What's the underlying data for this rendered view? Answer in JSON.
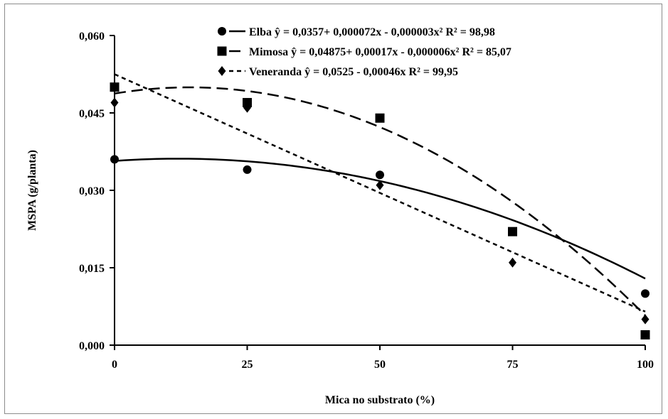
{
  "chart_data": {
    "type": "scatter",
    "xlabel": "Mica no substrato (%)",
    "ylabel": "MSPA  (g/planta)",
    "x_ticks": [
      0,
      25,
      50,
      75,
      100
    ],
    "x_tick_labels": [
      "0",
      "25",
      "50",
      "75",
      "100"
    ],
    "y_ticks": [
      0,
      0.015,
      0.03,
      0.045,
      0.06
    ],
    "y_tick_labels": [
      "0,000",
      "0,015",
      "0,030",
      "0,045",
      "0,060"
    ],
    "xlim": [
      0,
      100
    ],
    "ylim": [
      0,
      0.06
    ],
    "grid": false,
    "legend_position": "top",
    "series": [
      {
        "name": "Elba",
        "equation": "ŷ = 0,0357+ 0,000072x - 0,000003x²",
        "r2": "R² = 98,98",
        "marker": "circle",
        "line_style": "solid",
        "x": [
          0,
          25,
          50,
          75,
          100
        ],
        "y": [
          0.036,
          0.034,
          0.033,
          0.022,
          0.01
        ],
        "fit": {
          "type": "quadratic",
          "a": 0.0357,
          "b": 7.2e-05,
          "c": -3e-06
        }
      },
      {
        "name": "Mimosa",
        "equation": "ŷ = 0,04875+ 0,00017x - 0,000006x²",
        "r2": "R² = 85,07",
        "marker": "square",
        "line_style": "long-dash",
        "x": [
          0,
          25,
          50,
          75,
          100
        ],
        "y": [
          0.05,
          0.047,
          0.044,
          0.022,
          0.002
        ],
        "fit": {
          "type": "quadratic",
          "a": 0.04875,
          "b": 0.00017,
          "c": -6e-06
        }
      },
      {
        "name": "Veneranda",
        "equation": "ŷ = 0,0525 - 0,00046x",
        "r2": "R² = 99,95",
        "marker": "diamond",
        "line_style": "short-dash",
        "x": [
          0,
          25,
          50,
          75,
          100
        ],
        "y": [
          0.047,
          0.046,
          0.031,
          0.016,
          0.005
        ],
        "fit": {
          "type": "linear",
          "a": 0.0525,
          "b": -0.00046,
          "c": 0
        }
      }
    ]
  },
  "colors": {
    "ink": "#000000",
    "frame": "#8c8c8c",
    "background": "#ffffff"
  }
}
